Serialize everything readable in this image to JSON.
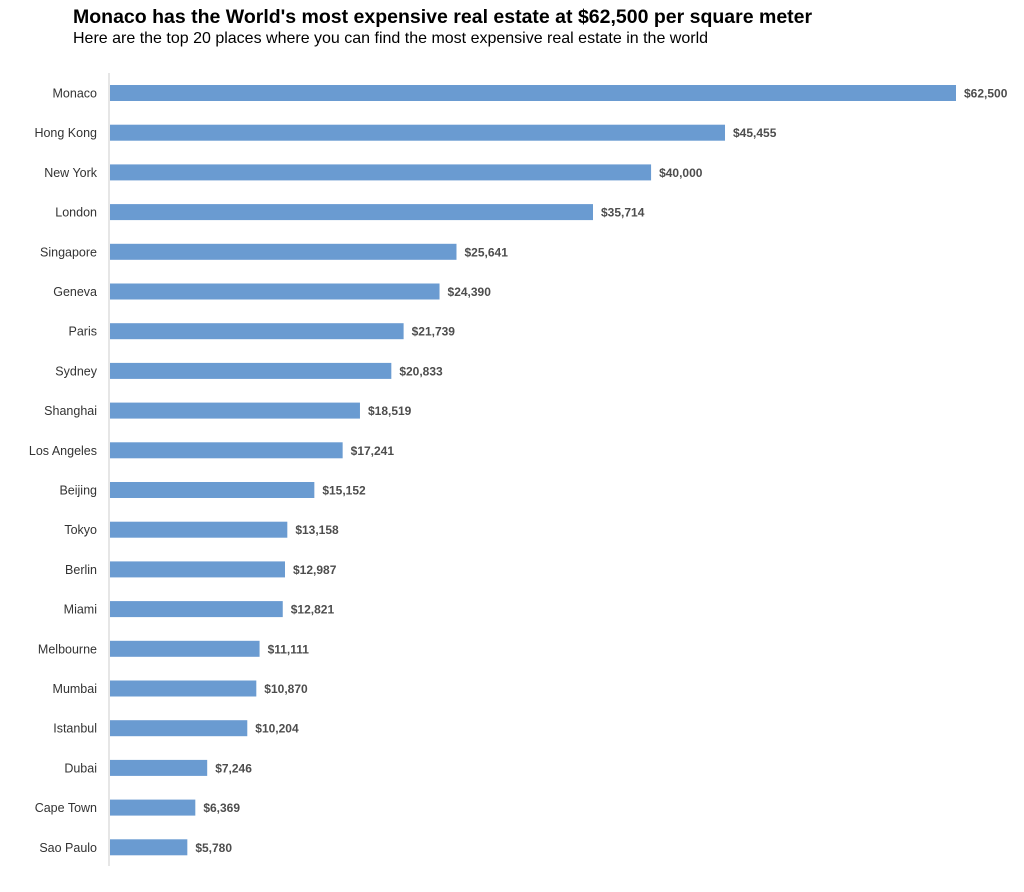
{
  "chart_data": {
    "type": "bar",
    "orientation": "horizontal",
    "title": "Monaco has the World's most expensive real estate at $62,500 per square meter",
    "subtitle": "Here are the top 20 places where you can find the most expensive real estate in the world",
    "xlabel": "",
    "ylabel": "",
    "xlim": [
      0,
      62500
    ],
    "grid": false,
    "legend": "none",
    "bar_color": "#6a9bd1",
    "axis_color": "#cccccc",
    "categories": [
      "Monaco",
      "Hong Kong",
      "New York",
      "London",
      "Singapore",
      "Geneva",
      "Paris",
      "Sydney",
      "Shanghai",
      "Los Angeles",
      "Beijing",
      "Tokyo",
      "Berlin",
      "Miami",
      "Melbourne",
      "Mumbai",
      "Istanbul",
      "Dubai",
      "Cape Town",
      "Sao Paulo"
    ],
    "values": [
      62500,
      45455,
      40000,
      35714,
      25641,
      24390,
      21739,
      20833,
      18519,
      17241,
      15152,
      13158,
      12987,
      12821,
      11111,
      10870,
      10204,
      7246,
      6369,
      5780
    ],
    "value_labels": [
      "$62,500",
      "$45,455",
      "$40,000",
      "$35,714",
      "$25,641",
      "$24,390",
      "$21,739",
      "$20,833",
      "$18,519",
      "$17,241",
      "$15,152",
      "$13,158",
      "$12,987",
      "$12,821",
      "$11,111",
      "$10,870",
      "$10,204",
      "$7,246",
      "$6,369",
      "$5,780"
    ]
  }
}
